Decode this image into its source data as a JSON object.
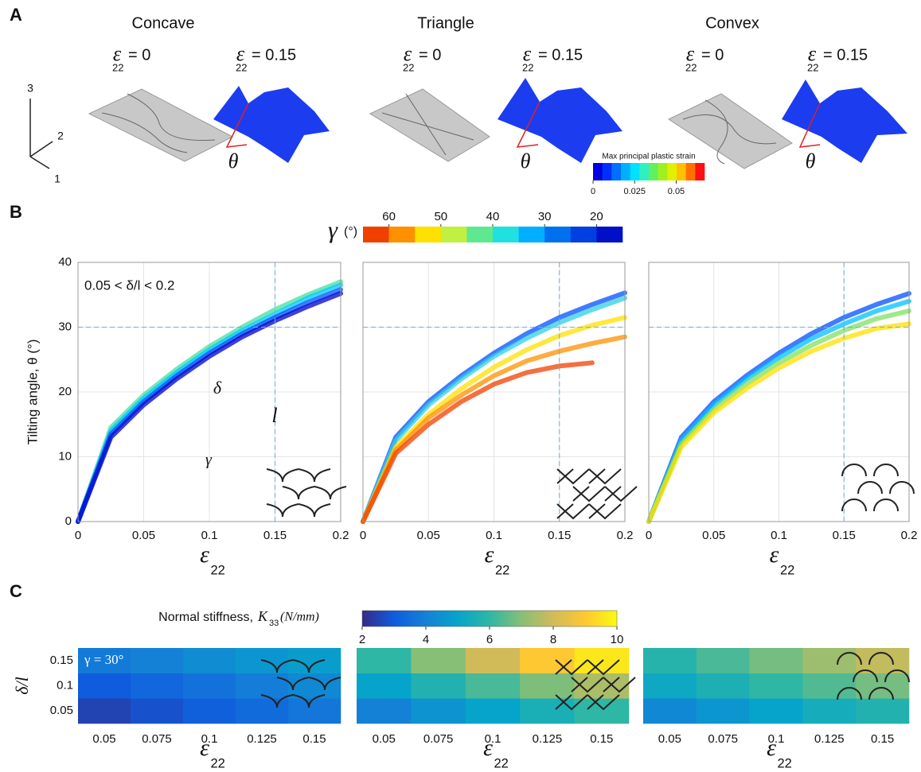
{
  "panel_labels": [
    "A",
    "B",
    "C"
  ],
  "panel_a": {
    "columns": [
      {
        "title": "Concave"
      },
      {
        "title": "Triangle"
      },
      {
        "title": "Convex"
      }
    ],
    "strain_symbol": "ε",
    "strain_subscript": "22",
    "states": [
      "= 0",
      "= 0.15"
    ],
    "angle_symbol": "θ",
    "axes": [
      "3",
      "2",
      "1"
    ],
    "colorbar": {
      "title": "Max principal plastic strain",
      "lim": [
        0,
        0.067
      ],
      "ticks": [
        0,
        0.025,
        0.05
      ],
      "colors": [
        "#0000e0",
        "#0030ff",
        "#0070ff",
        "#00b0ff",
        "#00e0ff",
        "#30f0c0",
        "#60f060",
        "#a0f020",
        "#e0f000",
        "#ffc000",
        "#ff7000",
        "#ff1010"
      ]
    }
  },
  "gamma_colorbar": {
    "symbol": "γ",
    "unit": "(°)",
    "lim": [
      65,
      15
    ],
    "ticks": [
      60,
      50,
      40,
      30,
      20
    ],
    "colors": [
      "#f04000",
      "#ff9000",
      "#ffe000",
      "#c0f040",
      "#60e890",
      "#20e0e0",
      "#00b0ff",
      "#0070f0",
      "#0040e0",
      "#0010c8"
    ]
  },
  "stiffness_colorbar": {
    "label": "Normal stiffness,",
    "symbol": "K",
    "subscript": "33",
    "unit": "(N/mm)",
    "lim": [
      2,
      10
    ],
    "ticks": [
      2,
      4,
      6,
      8,
      10
    ],
    "colors": [
      "#352a87",
      "#0f5cdd",
      "#1481d6",
      "#06a4ca",
      "#2eb7a4",
      "#87bf77",
      "#d1bb59",
      "#fec832",
      "#f9fb0e"
    ]
  },
  "chart_data": [
    {
      "type": "line",
      "x": [
        0,
        0.025,
        0.05,
        0.075,
        0.1,
        0.125,
        0.15,
        0.175,
        0.2
      ],
      "series": [
        {
          "color": "#40e0a0",
          "values": [
            0,
            14.5,
            19.5,
            23.5,
            27,
            30,
            32.7,
            35,
            37
          ]
        },
        {
          "color": "#00c8ff",
          "values": [
            0,
            14,
            19,
            23,
            26.5,
            29.5,
            32,
            34.5,
            36.5
          ]
        },
        {
          "color": "#0050ff",
          "values": [
            0,
            13.5,
            18.5,
            22.5,
            26,
            29,
            31.5,
            33.8,
            35.8
          ]
        },
        {
          "color": "#0000c8",
          "values": [
            0,
            13,
            18,
            22,
            25.5,
            28.5,
            31,
            33.2,
            35.2
          ]
        }
      ],
      "xlim": [
        0,
        0.2
      ],
      "ylim": [
        0,
        40
      ],
      "xticks": [
        0,
        0.05,
        0.1,
        0.15,
        0.2
      ],
      "yticks": [
        0,
        10,
        20,
        30,
        40
      ],
      "grid": true,
      "ytick_labels": true,
      "reference_lines": {
        "x": 0.15,
        "y": 30
      },
      "xlabel": {
        "symbol": "ε",
        "subscript": "22"
      },
      "ylabel": "Tilting angle, θ (°)",
      "annotation": "0.05 < δ/l < 0.2",
      "inset_labels": [
        "δ",
        "l",
        "γ"
      ]
    },
    {
      "type": "line",
      "x": [
        0,
        0.025,
        0.05,
        0.075,
        0.1,
        0.125,
        0.15,
        0.175,
        0.2
      ],
      "series": [
        {
          "color": "#0050ff",
          "values": [
            0,
            13,
            18.5,
            22.5,
            26,
            29,
            31.5,
            33.5,
            35.3
          ]
        },
        {
          "color": "#30d0e0",
          "values": [
            0,
            12.5,
            18,
            22,
            25.5,
            28.3,
            30.7,
            32.7,
            34.5
          ]
        },
        {
          "color": "#ffe000",
          "values": [
            0,
            11.5,
            16.5,
            20.5,
            23.8,
            26.5,
            28.7,
            30.3,
            31.5
          ]
        },
        {
          "color": "#ff9000",
          "values": [
            0,
            11,
            16,
            19.5,
            22.5,
            24.8,
            26.3,
            27.5,
            28.5
          ]
        },
        {
          "color": "#f04000",
          "values": [
            0,
            10.5,
            15,
            18.5,
            21.2,
            23,
            24,
            24.5,
            null
          ]
        }
      ],
      "xlim": [
        0,
        0.2
      ],
      "ylim": [
        0,
        40
      ],
      "xticks": [
        0,
        0.05,
        0.1,
        0.15,
        0.2
      ],
      "yticks": [
        0,
        10,
        20,
        30,
        40
      ],
      "grid": true,
      "ytick_labels": false,
      "reference_lines": {
        "x": 0.15,
        "y": 30
      },
      "xlabel": {
        "symbol": "ε",
        "subscript": "22"
      }
    },
    {
      "type": "line",
      "x": [
        0,
        0.025,
        0.05,
        0.075,
        0.1,
        0.125,
        0.15,
        0.175,
        0.2
      ],
      "series": [
        {
          "color": "#0050ff",
          "values": [
            0,
            13,
            18.5,
            22.5,
            26,
            29,
            31.5,
            33.5,
            35.2
          ]
        },
        {
          "color": "#00c0ff",
          "values": [
            0,
            12.5,
            18,
            22,
            25.3,
            28.2,
            30.5,
            32.5,
            34
          ]
        },
        {
          "color": "#80e060",
          "values": [
            0,
            12,
            17.3,
            21.2,
            24.5,
            27.2,
            29.5,
            31.3,
            32.5
          ]
        },
        {
          "color": "#ffe000",
          "values": [
            0,
            11.5,
            16.8,
            20.5,
            23.7,
            26.3,
            28.3,
            29.8,
            30.5
          ]
        }
      ],
      "xlim": [
        0,
        0.2
      ],
      "ylim": [
        0,
        40
      ],
      "xticks": [
        0,
        0.05,
        0.1,
        0.15,
        0.2
      ],
      "yticks": [
        0,
        10,
        20,
        30,
        40
      ],
      "grid": true,
      "ytick_labels": false,
      "reference_lines": {
        "x": 0.15,
        "y": 30
      },
      "xlabel": {
        "symbol": "ε",
        "subscript": "22"
      }
    },
    {
      "type": "heatmap",
      "x": [
        0.05,
        0.075,
        0.1,
        0.125,
        0.15
      ],
      "y": [
        0.05,
        0.1,
        0.15
      ],
      "values": [
        [
          2.5,
          2.8,
          3.1,
          3.4,
          3.7
        ],
        [
          3.0,
          3.3,
          3.6,
          3.9,
          4.2
        ],
        [
          3.8,
          4.0,
          4.3,
          4.6,
          4.8
        ]
      ],
      "ytick_labels": true,
      "xlabel": {
        "symbol": "ε",
        "subscript": "22"
      },
      "ylabel": "δ/l",
      "annotation": "γ = 30°"
    },
    {
      "type": "heatmap",
      "x": [
        0.05,
        0.075,
        0.1,
        0.125,
        0.15
      ],
      "y": [
        0.05,
        0.1,
        0.15
      ],
      "values": [
        [
          4.0,
          4.5,
          5.0,
          5.5,
          6.0
        ],
        [
          5.0,
          5.7,
          6.3,
          6.9,
          7.5
        ],
        [
          6.0,
          7.0,
          8.0,
          9.0,
          9.6
        ]
      ],
      "ytick_labels": false,
      "xlabel": {
        "symbol": "ε",
        "subscript": "22"
      }
    },
    {
      "type": "heatmap",
      "x": [
        0.05,
        0.075,
        0.1,
        0.125,
        0.15
      ],
      "y": [
        0.05,
        0.1,
        0.15
      ],
      "values": [
        [
          4.2,
          4.6,
          5.0,
          5.4,
          5.7
        ],
        [
          5.2,
          5.6,
          6.0,
          6.4,
          6.8
        ],
        [
          5.8,
          6.3,
          6.8,
          7.3,
          7.8
        ]
      ],
      "ytick_labels": false,
      "xlabel": {
        "symbol": "ε",
        "subscript": "22"
      }
    }
  ]
}
